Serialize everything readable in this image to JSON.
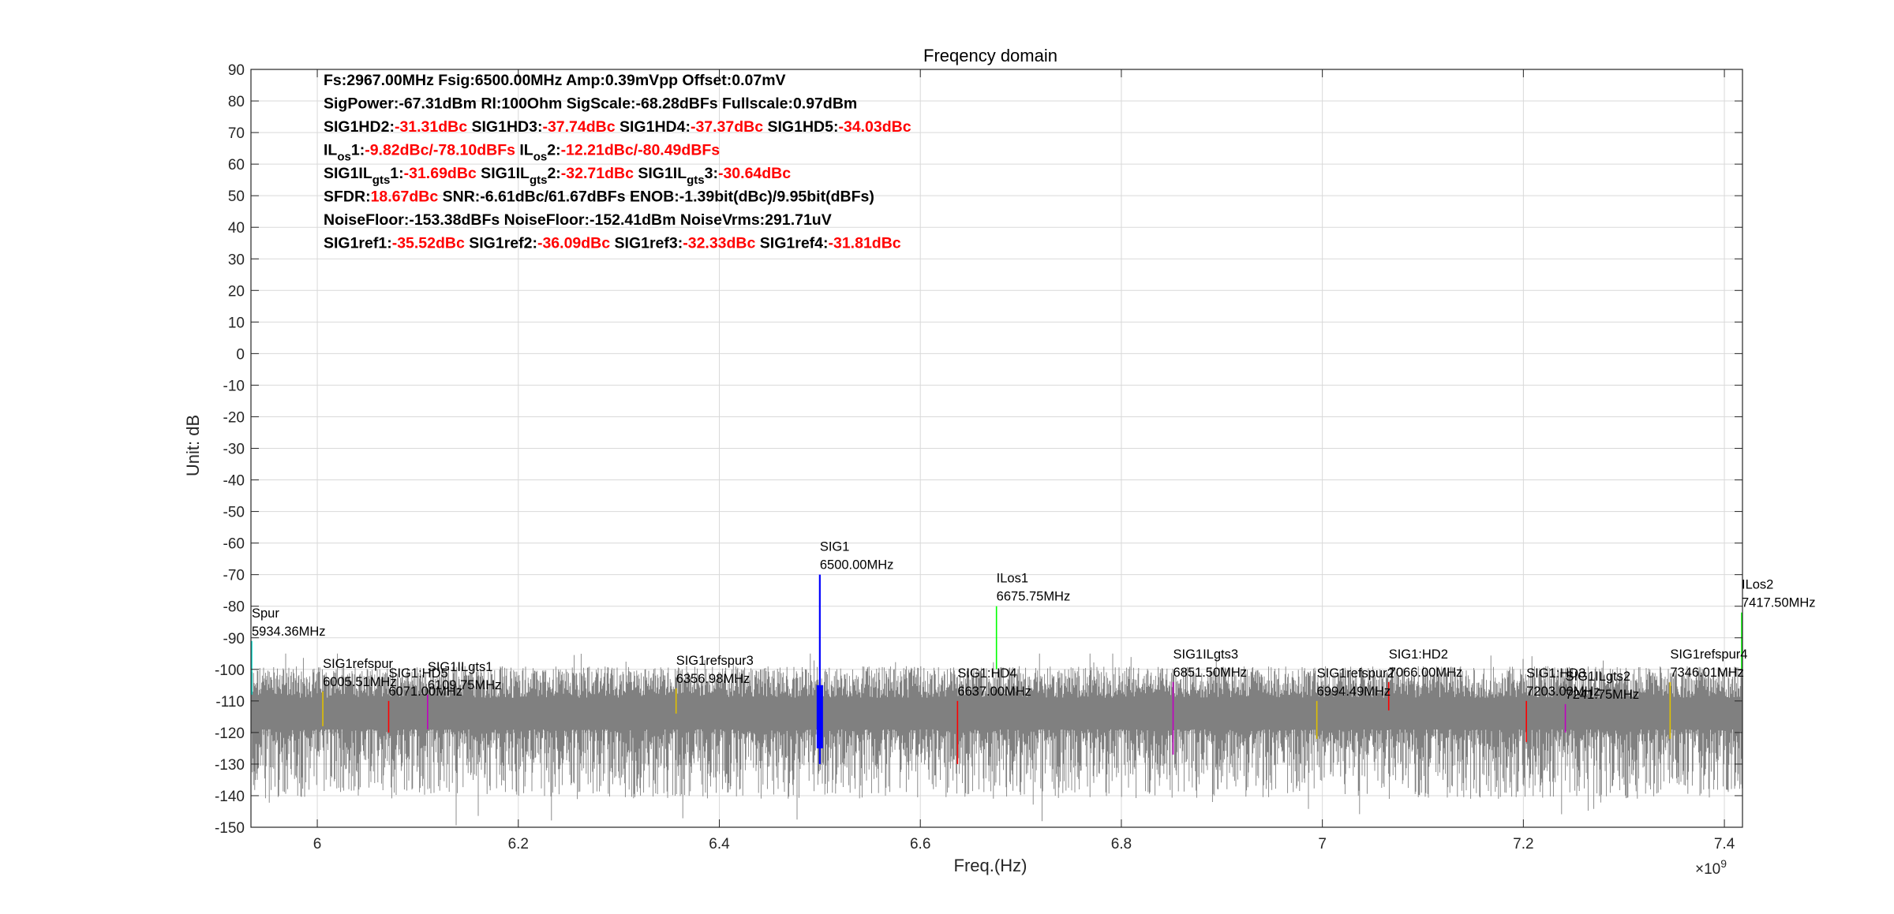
{
  "chart_data": {
    "type": "line",
    "title": "Freqency domain",
    "xlabel": "Freq.(Hz)",
    "ylabel": "Unit: dB",
    "x_exponent": "×10",
    "x_exponent_power": "9",
    "xlim": [
      5934000000.0,
      7418000000.0
    ],
    "ylim": [
      -150,
      90
    ],
    "xticks": [
      6.0,
      6.2,
      6.4,
      6.6,
      6.8,
      7.0,
      7.2,
      7.4
    ],
    "xtick_labels": [
      "6",
      "6.2",
      "6.4",
      "6.6",
      "6.8",
      "7",
      "7.2",
      "7.4"
    ],
    "yticks": [
      90,
      80,
      70,
      60,
      50,
      40,
      30,
      20,
      10,
      0,
      -10,
      -20,
      -30,
      -40,
      -50,
      -60,
      -70,
      -80,
      -90,
      -100,
      -110,
      -120,
      -130,
      -140,
      -150
    ],
    "grid": true,
    "noise": {
      "name": "spectrum",
      "color": "#808080",
      "floor_db": -113,
      "min_db": -150,
      "max_db": -98
    },
    "markers": [
      {
        "name": "Spur",
        "freq_label": "5934.36MHz",
        "x": 5934.36,
        "y_top": -91,
        "y_bottom": -108,
        "color": "#00e0d0"
      },
      {
        "name": "SIG1refspur",
        "freq_label": "6005.51MHz",
        "x": 6005.51,
        "y_top": -107,
        "y_bottom": -118,
        "color": "#e0c000"
      },
      {
        "name": "SIG1:HD5",
        "freq_label": "6071.00MHz",
        "x": 6071.0,
        "y_top": -110,
        "y_bottom": -120,
        "color": "#ff0000"
      },
      {
        "name": "SIG1ILgts1",
        "freq_label": "6109.75MHz",
        "x": 6109.75,
        "y_top": -108,
        "y_bottom": -119,
        "color": "#c000c0"
      },
      {
        "name": "SIG1refspur3",
        "freq_label": "6356.98MHz",
        "x": 6356.98,
        "y_top": -106,
        "y_bottom": -114,
        "color": "#e0c000"
      },
      {
        "name": "SIG1",
        "freq_label": "6500.00MHz",
        "x": 6500.0,
        "y_top": -70,
        "y_bottom": -130,
        "color": "#0000ff"
      },
      {
        "name": "SIG1:HD4",
        "freq_label": "6637.00MHz",
        "x": 6637.0,
        "y_top": -110,
        "y_bottom": -130,
        "color": "#ff0000"
      },
      {
        "name": "ILos1",
        "freq_label": "6675.75MHz",
        "x": 6675.75,
        "y_top": -80,
        "y_bottom": -100,
        "color": "#00ff00"
      },
      {
        "name": "SIG1ILgts3",
        "freq_label": "6851.50MHz",
        "x": 6851.5,
        "y_top": -104,
        "y_bottom": -127,
        "color": "#c000c0"
      },
      {
        "name": "SIG1refspur2",
        "freq_label": "6994.49MHz",
        "x": 6994.49,
        "y_top": -110,
        "y_bottom": -122,
        "color": "#e0c000"
      },
      {
        "name": "SIG1:HD2",
        "freq_label": "7066.00MHz",
        "x": 7066.0,
        "y_top": -104,
        "y_bottom": -113,
        "color": "#ff0000"
      },
      {
        "name": "SIG1:HD3",
        "freq_label": "7203.00MHz",
        "x": 7203.0,
        "y_top": -110,
        "y_bottom": -123,
        "color": "#ff0000"
      },
      {
        "name": "SIG1ILgts2",
        "freq_label": "7241.75MHz",
        "x": 7241.75,
        "y_top": -111,
        "y_bottom": -120,
        "color": "#c000c0"
      },
      {
        "name": "SIG1refspur4",
        "freq_label": "7346.01MHz",
        "x": 7346.01,
        "y_top": -104,
        "y_bottom": -122,
        "color": "#e0c000"
      },
      {
        "name": "ILos2",
        "freq_label": "7417.50MHz",
        "x": 7417.5,
        "y_top": -82,
        "y_bottom": -100,
        "color": "#00ff00"
      }
    ],
    "info_lines": [
      [
        {
          "t": "Fs:2967.00MHz Fsig:6500.00MHz Amp:0.39mVpp Offset:0.07mV"
        }
      ],
      [
        {
          "t": "SigPower:-67.31dBm Rl:100Ohm SigScale:-68.28dBFs Fullscale:0.97dBm"
        }
      ],
      [
        {
          "t": "SIG1HD2:"
        },
        {
          "t": "-31.31dBc",
          "red": true
        },
        {
          "t": " SIG1HD3:"
        },
        {
          "t": "-37.74dBc",
          "red": true
        },
        {
          "t": " SIG1HD4:"
        },
        {
          "t": "-37.37dBc",
          "red": true
        },
        {
          "t": " SIG1HD5:"
        },
        {
          "t": "-34.03dBc",
          "red": true
        }
      ],
      [
        {
          "t": "IL"
        },
        {
          "t": "os",
          "sub": true
        },
        {
          "t": "1:"
        },
        {
          "t": "-9.82dBc/-78.10dBFs",
          "red": true
        },
        {
          "t": " IL"
        },
        {
          "t": "os",
          "sub": true
        },
        {
          "t": "2:"
        },
        {
          "t": "-12.21dBc/-80.49dBFs",
          "red": true
        }
      ],
      [
        {
          "t": "SIG1IL"
        },
        {
          "t": "gts",
          "sub": true
        },
        {
          "t": "1:"
        },
        {
          "t": "-31.69dBc",
          "red": true
        },
        {
          "t": " SIG1IL"
        },
        {
          "t": "gts",
          "sub": true
        },
        {
          "t": "2:"
        },
        {
          "t": "-32.71dBc",
          "red": true
        },
        {
          "t": " SIG1IL"
        },
        {
          "t": "gts",
          "sub": true
        },
        {
          "t": "3:"
        },
        {
          "t": "-30.64dBc",
          "red": true
        }
      ],
      [
        {
          "t": "SFDR:"
        },
        {
          "t": "18.67dBc",
          "red": true
        },
        {
          "t": " SNR:-6.61dBc/61.67dBFs ENOB:-1.39bit(dBc)/9.95bit(dBFs)"
        }
      ],
      [
        {
          "t": "NoiseFloor:-153.38dBFs NoiseFloor:-152.41dBm NoiseVrms:291.71uV"
        }
      ],
      [
        {
          "t": "SIG1ref1:"
        },
        {
          "t": "-35.52dBc",
          "red": true
        },
        {
          "t": " SIG1ref2:"
        },
        {
          "t": "-36.09dBc",
          "red": true
        },
        {
          "t": " SIG1ref3:"
        },
        {
          "t": "-32.33dBc",
          "red": true
        },
        {
          "t": " SIG1ref4:"
        },
        {
          "t": "-31.81dBc",
          "red": true
        }
      ]
    ]
  }
}
